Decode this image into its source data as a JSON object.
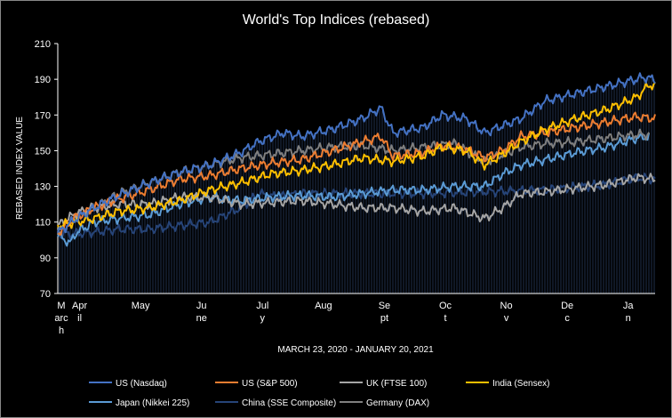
{
  "chart_data": {
    "type": "line",
    "title": "World's Top Indices (rebased)",
    "xlabel": "MARCH 23, 2020 - JANUARY 20, 2021",
    "ylabel": "REBASED INDEX VALUE",
    "ylim": [
      70,
      210
    ],
    "yticks": [
      70,
      90,
      110,
      130,
      150,
      170,
      190,
      210
    ],
    "grid": false,
    "legend_position": "bottom",
    "x_month_labels": [
      {
        "label": [
          "M",
          "arc",
          "h"
        ],
        "t": 0
      },
      {
        "label": [
          "Apr",
          "il"
        ],
        "t": 0.3
      },
      {
        "label": [
          "May"
        ],
        "t": 1.3
      },
      {
        "label": [
          "Ju",
          "ne"
        ],
        "t": 2.3
      },
      {
        "label": [
          "Jul",
          "y"
        ],
        "t": 3.3
      },
      {
        "label": [
          "Aug"
        ],
        "t": 4.3
      },
      {
        "label": [
          "Se",
          "pt"
        ],
        "t": 5.3
      },
      {
        "label": [
          "Oc",
          "t"
        ],
        "t": 6.3
      },
      {
        "label": [
          "No",
          "v"
        ],
        "t": 7.3
      },
      {
        "label": [
          "De",
          "c"
        ],
        "t": 8.3
      },
      {
        "label": [
          "Ja",
          "n"
        ],
        "t": 9.3
      }
    ],
    "series": [
      {
        "name": "US (Nasdaq)",
        "color": "#4472c4",
        "width": 2,
        "points": [
          [
            0,
            104
          ],
          [
            0.3,
            112
          ],
          [
            0.6,
            118
          ],
          [
            1,
            125
          ],
          [
            1.5,
            132
          ],
          [
            2,
            138
          ],
          [
            2.5,
            142
          ],
          [
            3,
            149
          ],
          [
            3.3,
            155
          ],
          [
            3.7,
            160
          ],
          [
            4,
            158
          ],
          [
            4.5,
            162
          ],
          [
            5,
            168
          ],
          [
            5.3,
            174
          ],
          [
            5.5,
            160
          ],
          [
            6,
            163
          ],
          [
            6.3,
            170
          ],
          [
            6.7,
            168
          ],
          [
            7,
            160
          ],
          [
            7.3,
            164
          ],
          [
            7.6,
            168
          ],
          [
            8,
            178
          ],
          [
            8.5,
            182
          ],
          [
            9,
            186
          ],
          [
            9.5,
            190
          ],
          [
            9.6,
            191
          ],
          [
            9.8,
            190
          ]
        ]
      },
      {
        "name": "US (S&P 500)",
        "color": "#ed7d31",
        "width": 2,
        "points": [
          [
            0,
            104
          ],
          [
            0.3,
            113
          ],
          [
            0.6,
            118
          ],
          [
            1,
            123
          ],
          [
            1.5,
            128
          ],
          [
            2,
            134
          ],
          [
            2.5,
            136
          ],
          [
            3,
            140
          ],
          [
            3.5,
            143
          ],
          [
            4,
            145
          ],
          [
            4.5,
            150
          ],
          [
            5,
            155
          ],
          [
            5.3,
            158
          ],
          [
            5.5,
            147
          ],
          [
            6,
            149
          ],
          [
            6.3,
            153
          ],
          [
            6.7,
            151
          ],
          [
            7,
            146
          ],
          [
            7.3,
            150
          ],
          [
            7.6,
            158
          ],
          [
            8,
            160
          ],
          [
            8.5,
            163
          ],
          [
            9,
            166
          ],
          [
            9.5,
            169
          ],
          [
            9.8,
            168
          ]
        ]
      },
      {
        "name": "UK (FTSE 100)",
        "color": "#a5a5a5",
        "width": 2,
        "points": [
          [
            0,
            108
          ],
          [
            0.3,
            115
          ],
          [
            0.6,
            118
          ],
          [
            1,
            120
          ],
          [
            1.5,
            120
          ],
          [
            2,
            124
          ],
          [
            2.5,
            124
          ],
          [
            3,
            120
          ],
          [
            3.5,
            121
          ],
          [
            4,
            122
          ],
          [
            4.5,
            120
          ],
          [
            5,
            118
          ],
          [
            5.5,
            118
          ],
          [
            6,
            116
          ],
          [
            6.5,
            118
          ],
          [
            7,
            112
          ],
          [
            7.3,
            118
          ],
          [
            7.6,
            126
          ],
          [
            8,
            127
          ],
          [
            8.5,
            129
          ],
          [
            9,
            131
          ],
          [
            9.5,
            135
          ],
          [
            9.8,
            134
          ]
        ]
      },
      {
        "name": "India (Sensex)",
        "color": "#ffc000",
        "width": 2,
        "points": [
          [
            0,
            108
          ],
          [
            0.3,
            110
          ],
          [
            0.6,
            112
          ],
          [
            1,
            116
          ],
          [
            1.5,
            118
          ],
          [
            2,
            122
          ],
          [
            2.5,
            128
          ],
          [
            3,
            132
          ],
          [
            3.5,
            137
          ],
          [
            4,
            139
          ],
          [
            4.5,
            142
          ],
          [
            5,
            146
          ],
          [
            5.5,
            144
          ],
          [
            6,
            147
          ],
          [
            6.3,
            152
          ],
          [
            6.7,
            150
          ],
          [
            7,
            142
          ],
          [
            7.3,
            148
          ],
          [
            7.6,
            155
          ],
          [
            8,
            162
          ],
          [
            8.5,
            168
          ],
          [
            9,
            173
          ],
          [
            9.5,
            180
          ],
          [
            9.7,
            187
          ],
          [
            9.8,
            186
          ]
        ]
      },
      {
        "name": "Japan (Nikkei 225)",
        "color": "#5b9bd5",
        "width": 2,
        "points": [
          [
            0,
            103
          ],
          [
            0.2,
            98
          ],
          [
            0.3,
            104
          ],
          [
            0.6,
            110
          ],
          [
            1,
            112
          ],
          [
            1.5,
            114
          ],
          [
            2,
            120
          ],
          [
            2.5,
            124
          ],
          [
            3,
            122
          ],
          [
            3.5,
            124
          ],
          [
            4,
            125
          ],
          [
            4.5,
            124
          ],
          [
            5,
            126
          ],
          [
            5.5,
            128
          ],
          [
            6,
            128
          ],
          [
            6.5,
            130
          ],
          [
            7,
            130
          ],
          [
            7.3,
            137
          ],
          [
            7.6,
            142
          ],
          [
            8,
            145
          ],
          [
            8.5,
            149
          ],
          [
            9,
            152
          ],
          [
            9.5,
            157
          ],
          [
            9.7,
            158
          ]
        ]
      },
      {
        "name": "China (SSE Composite)",
        "color": "#264478",
        "width": 2,
        "points": [
          [
            0,
            103
          ],
          [
            0.5,
            104
          ],
          [
            1,
            106
          ],
          [
            1.5,
            106
          ],
          [
            2,
            108
          ],
          [
            2.5,
            110
          ],
          [
            3,
            118
          ],
          [
            3.3,
            126
          ],
          [
            3.6,
            124
          ],
          [
            4,
            126
          ],
          [
            5,
            126
          ],
          [
            6,
            126
          ],
          [
            7,
            127
          ],
          [
            8,
            128
          ],
          [
            9,
            131
          ],
          [
            9.5,
            135
          ],
          [
            9.8,
            134
          ]
        ]
      },
      {
        "name": "Germany (DAX)",
        "color": "#7f7f7f",
        "width": 2,
        "points": [
          [
            0,
            104
          ],
          [
            0.3,
            112
          ],
          [
            0.6,
            118
          ],
          [
            1,
            126
          ],
          [
            1.5,
            132
          ],
          [
            2,
            138
          ],
          [
            2.5,
            142
          ],
          [
            3,
            146
          ],
          [
            3.5,
            148
          ],
          [
            4,
            150
          ],
          [
            4.5,
            152
          ],
          [
            5,
            153
          ],
          [
            5.5,
            150
          ],
          [
            6,
            152
          ],
          [
            6.5,
            154
          ],
          [
            7,
            144
          ],
          [
            7.3,
            148
          ],
          [
            7.6,
            152
          ],
          [
            8,
            154
          ],
          [
            8.5,
            155
          ],
          [
            9,
            157
          ],
          [
            9.5,
            159
          ],
          [
            9.7,
            159
          ]
        ]
      }
    ]
  }
}
